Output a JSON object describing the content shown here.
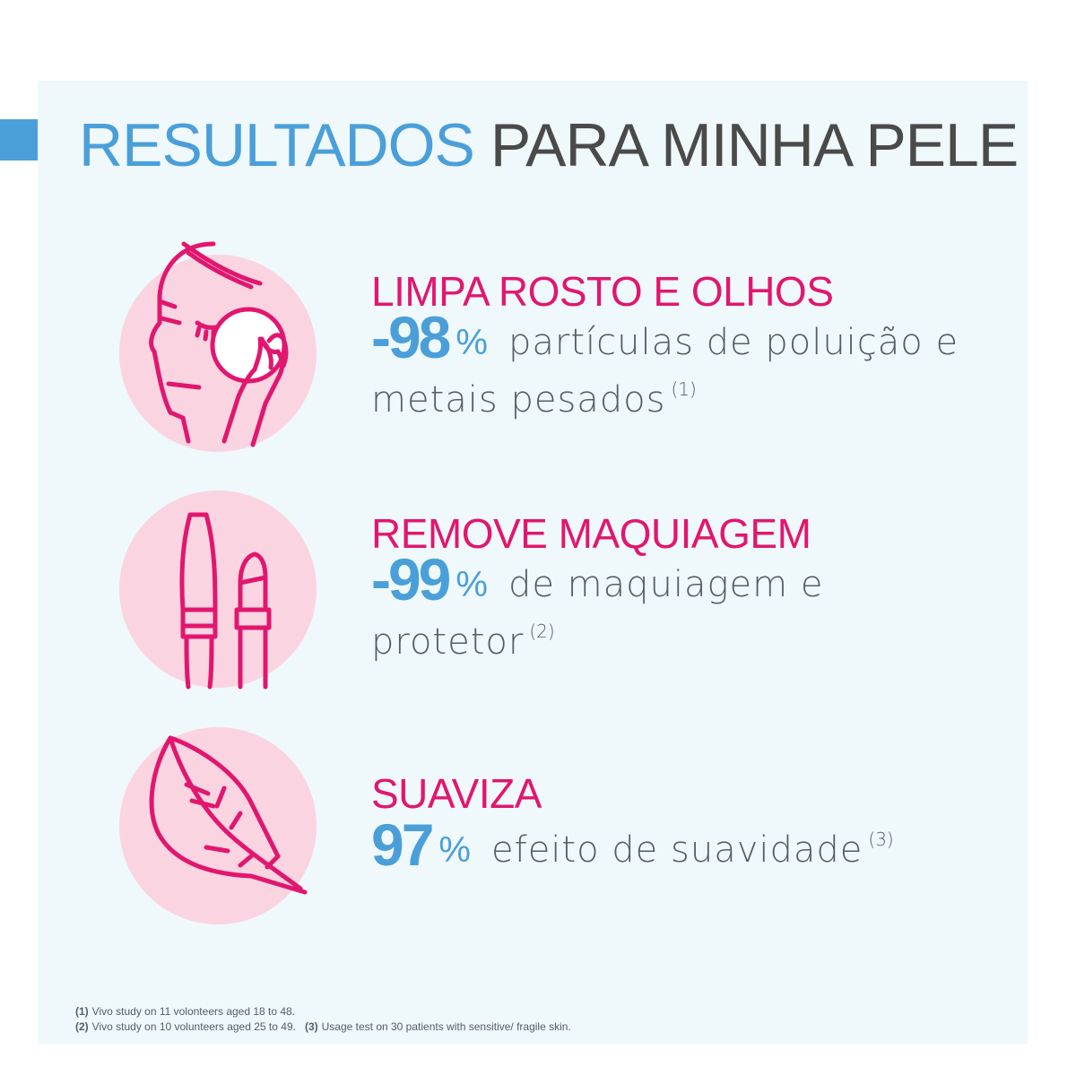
{
  "header": {
    "title_highlight": "RESULTADOS",
    "title_rest": "PARA MINHA PELE"
  },
  "colors": {
    "accent_blue": "#4a9fd9",
    "accent_pink": "#e2166f",
    "circle_pink": "#fad5e1",
    "panel_bg": "#eff8fb",
    "text_gray": "#555e66"
  },
  "features": [
    {
      "icon": "face-cleansing-icon",
      "title": "LIMPA ROSTO E OLHOS",
      "value": "-98",
      "unit": "%",
      "desc_line1": "partículas de poluição e",
      "desc_line2": "metais pesados",
      "ref": "(1)"
    },
    {
      "icon": "makeup-icon",
      "title": "REMOVE MAQUIAGEM",
      "value": "-99",
      "unit": "%",
      "desc_line1": "de maquiagem e",
      "desc_line2": "protetor",
      "ref": "(2)"
    },
    {
      "icon": "feather-icon",
      "title": "SUAVIZA",
      "value": "97",
      "unit": "%",
      "desc_line1": "efeito de suavidade",
      "ref": "(3)"
    }
  ],
  "footnotes": {
    "n1_label": "(1)",
    "n1_text": "Vivo study on 11 volonteers aged 18 to 48.",
    "n2_label": "(2)",
    "n2_text": "Vivo study on 10 volunteers aged 25 to 49.",
    "n3_label": "(3)",
    "n3_text": "Usage test on 30 patients with sensitive/ fragile skin."
  }
}
